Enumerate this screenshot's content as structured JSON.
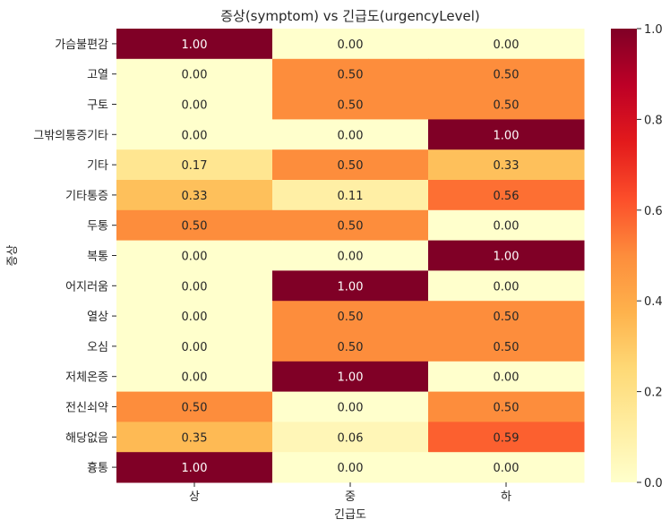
{
  "chart_data": {
    "type": "heatmap",
    "title": "증상(symptom) vs 긴급도(urgencyLevel)",
    "xlabel": "긴급도",
    "ylabel": "증상",
    "x_categories": [
      "상",
      "중",
      "하"
    ],
    "y_categories": [
      "가슴불편감",
      "고열",
      "구토",
      "그밖의통증기타",
      "기타",
      "기타통증",
      "두통",
      "복통",
      "어지러움",
      "열상",
      "오심",
      "저체온증",
      "전신쇠약",
      "해당없음",
      "흉통"
    ],
    "values": [
      [
        1.0,
        0.0,
        0.0
      ],
      [
        0.0,
        0.5,
        0.5
      ],
      [
        0.0,
        0.5,
        0.5
      ],
      [
        0.0,
        0.0,
        1.0
      ],
      [
        0.17,
        0.5,
        0.33
      ],
      [
        0.33,
        0.11,
        0.56
      ],
      [
        0.5,
        0.5,
        0.0
      ],
      [
        0.0,
        0.0,
        1.0
      ],
      [
        0.0,
        1.0,
        0.0
      ],
      [
        0.0,
        0.5,
        0.5
      ],
      [
        0.0,
        0.5,
        0.5
      ],
      [
        0.0,
        1.0,
        0.0
      ],
      [
        0.5,
        0.0,
        0.5
      ],
      [
        0.35,
        0.06,
        0.59
      ],
      [
        1.0,
        0.0,
        0.0
      ]
    ],
    "colormap": "YlOrRd",
    "vmin": 0.0,
    "vmax": 1.0,
    "colorbar_ticks": [
      "0.0",
      "0.2",
      "0.4",
      "0.6",
      "0.8",
      "1.0"
    ],
    "annotation_format": "0.00",
    "grid": false
  }
}
